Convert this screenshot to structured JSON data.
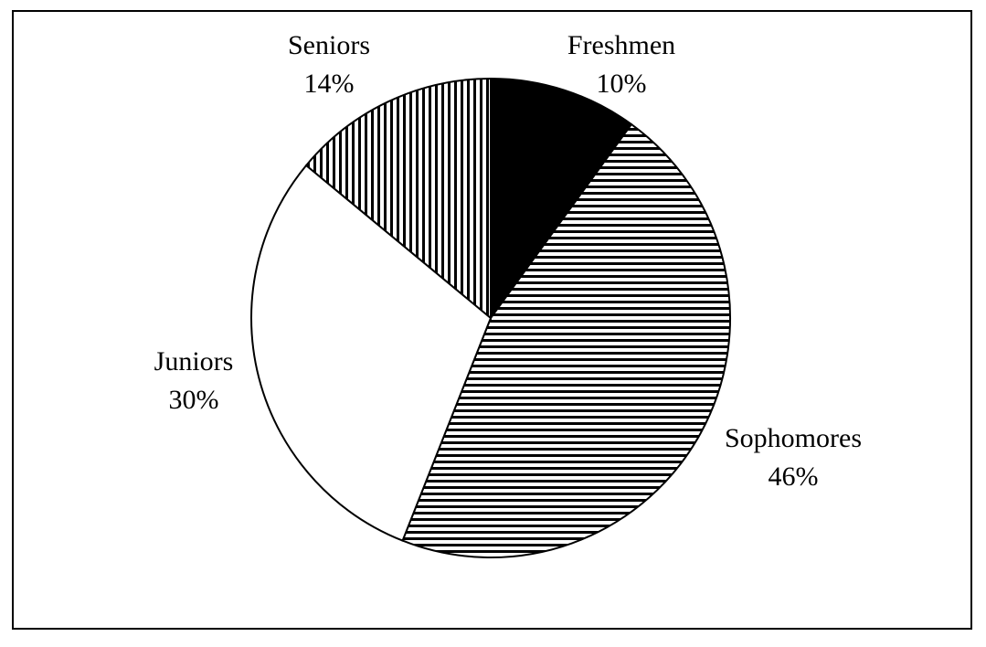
{
  "chart_data": {
    "type": "pie",
    "categories": [
      "Freshmen",
      "Sophomores",
      "Juniors",
      "Seniors"
    ],
    "values": [
      10,
      46,
      30,
      14
    ],
    "value_labels": [
      "10%",
      "46%",
      "30%",
      "14%"
    ],
    "patterns": [
      "solid",
      "horizontal-stripes",
      "none",
      "vertical-stripes"
    ],
    "color": "#000000"
  }
}
